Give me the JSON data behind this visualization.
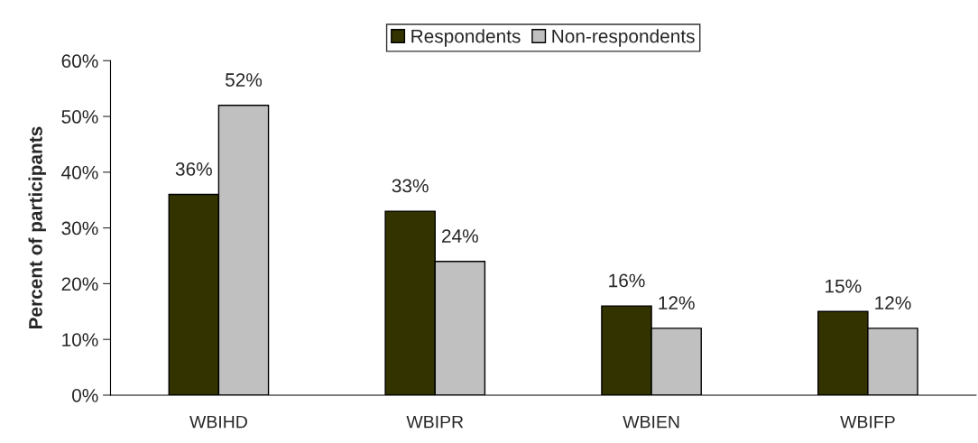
{
  "chart_data": {
    "type": "bar",
    "ylabel": "Percent of participants",
    "categories": [
      "WBIHD",
      "WBIPR",
      "WBIEN",
      "WBIFP"
    ],
    "series": [
      {
        "name": "Respondents",
        "color": "#333300",
        "values": [
          36,
          33,
          16,
          15
        ],
        "value_labels": [
          "36%",
          "33%",
          "16%",
          "15%"
        ]
      },
      {
        "name": "Non-respondents",
        "color": "#c0c0c0",
        "values": [
          52,
          24,
          12,
          12
        ],
        "value_labels": [
          "52%",
          "24%",
          "12%",
          "12%"
        ]
      }
    ],
    "ylim": [
      0,
      60
    ],
    "yticks": [
      {
        "value": 0,
        "label": "0%"
      },
      {
        "value": 10,
        "label": "10%"
      },
      {
        "value": 20,
        "label": "20%"
      },
      {
        "value": 30,
        "label": "30%"
      },
      {
        "value": 40,
        "label": "40%"
      },
      {
        "value": 50,
        "label": "50%"
      },
      {
        "value": 60,
        "label": "60%"
      }
    ],
    "grid": false,
    "legend": "top"
  }
}
